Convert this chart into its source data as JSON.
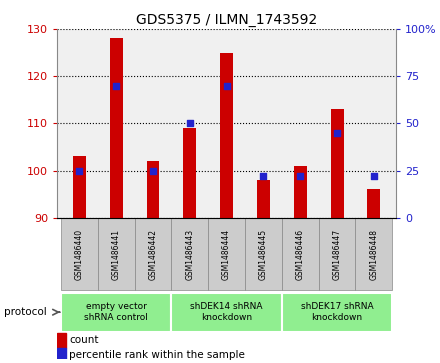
{
  "title": "GDS5375 / ILMN_1743592",
  "samples": [
    "GSM1486440",
    "GSM1486441",
    "GSM1486442",
    "GSM1486443",
    "GSM1486444",
    "GSM1486445",
    "GSM1486446",
    "GSM1486447",
    "GSM1486448"
  ],
  "counts": [
    103,
    128,
    102,
    109,
    125,
    98,
    101,
    113,
    96
  ],
  "percentiles": [
    25,
    70,
    25,
    50,
    70,
    22,
    22,
    45,
    22
  ],
  "ylim_left": [
    90,
    130
  ],
  "ylim_right": [
    0,
    100
  ],
  "yticks_left": [
    90,
    100,
    110,
    120,
    130
  ],
  "yticks_right": [
    0,
    25,
    50,
    75,
    100
  ],
  "ytick_labels_right": [
    "0",
    "25",
    "50",
    "75",
    "100%"
  ],
  "bar_color": "#cc0000",
  "blue_color": "#2222cc",
  "groups": [
    {
      "label": "empty vector\nshRNA control",
      "start": 0,
      "end": 3,
      "color": "#90ee90"
    },
    {
      "label": "shDEK14 shRNA\nknockdown",
      "start": 3,
      "end": 6,
      "color": "#90ee90"
    },
    {
      "label": "shDEK17 shRNA\nknockdown",
      "start": 6,
      "end": 9,
      "color": "#90ee90"
    }
  ],
  "legend_count_label": "count",
  "legend_pct_label": "percentile rank within the sample",
  "protocol_label": "protocol",
  "background_color": "#ffffff",
  "tick_color_left": "#cc0000",
  "tick_color_right": "#2222cc",
  "bar_width": 0.35,
  "blue_square_size": 25,
  "plot_bg": "#f0f0f0",
  "sample_box_color": "#cccccc",
  "sample_box_edge": "#888888"
}
